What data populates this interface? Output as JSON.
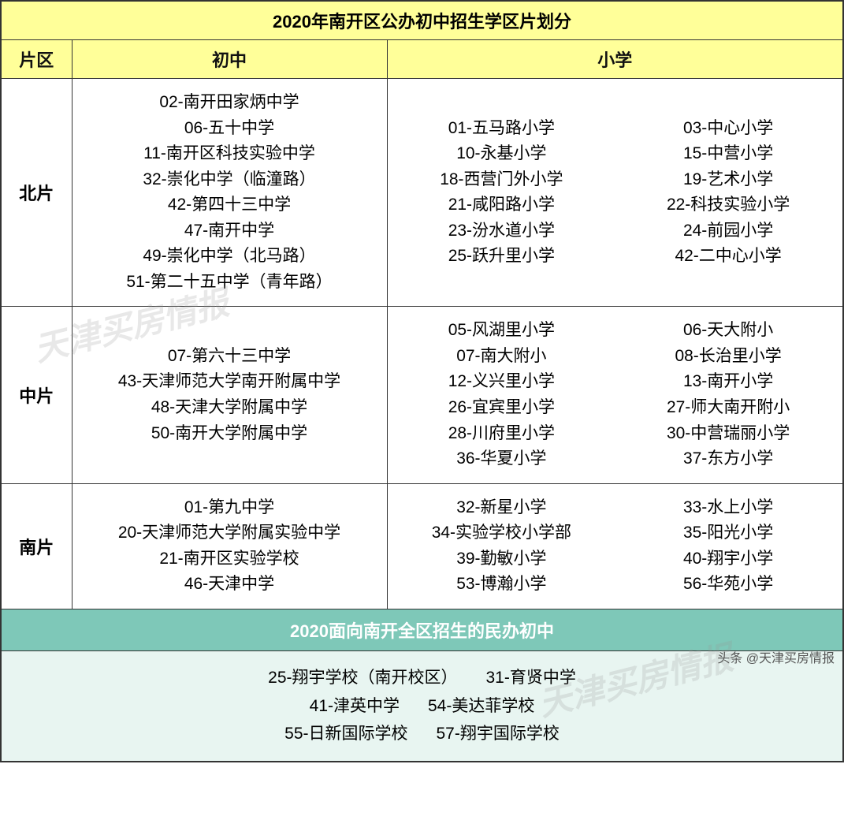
{
  "title": "2020年南开区公办初中招生学区片划分",
  "headers": {
    "zone": "片区",
    "middle": "初中",
    "primary": "小学"
  },
  "zones": [
    {
      "name": "北片",
      "middle": [
        "02-南开田家炳中学",
        "06-五十中学",
        "11-南开区科技实验中学",
        "32-崇化中学（临潼路）",
        "42-第四十三中学",
        "47-南开中学",
        "49-崇化中学（北马路）",
        "51-第二十五中学（青年路）"
      ],
      "primary_left": [
        "01-五马路小学",
        "10-永基小学",
        "18-西营门外小学",
        "21-咸阳路小学",
        "23-汾水道小学",
        "25-跃升里小学"
      ],
      "primary_right": [
        "03-中心小学",
        "15-中营小学",
        "19-艺术小学",
        "22-科技实验小学",
        "24-前园小学",
        "42-二中心小学"
      ]
    },
    {
      "name": "中片",
      "middle": [
        "07-第六十三中学",
        "43-天津师范大学南开附属中学",
        "48-天津大学附属中学",
        "50-南开大学附属中学"
      ],
      "primary_left": [
        "05-风湖里小学",
        "07-南大附小",
        "12-义兴里小学",
        "26-宜宾里小学",
        "28-川府里小学",
        "36-华夏小学"
      ],
      "primary_right": [
        "06-天大附小",
        "08-长治里小学",
        "13-南开小学",
        "27-师大南开附小",
        "30-中营瑞丽小学",
        "37-东方小学"
      ]
    },
    {
      "name": "南片",
      "middle": [
        "01-第九中学",
        "20-天津师范大学附属实验中学",
        "21-南开区实验学校",
        "46-天津中学"
      ],
      "primary_left": [
        "32-新星小学",
        "34-实验学校小学部",
        "39-勤敏小学",
        "53-博瀚小学"
      ],
      "primary_right": [
        "33-水上小学",
        "35-阳光小学",
        "40-翔宇小学",
        "56-华苑小学"
      ]
    }
  ],
  "private_title": "2020面向南开全区招生的民办初中",
  "private_rows": [
    [
      "25-翔宇学校（南开校区）",
      "31-育贤中学"
    ],
    [
      "41-津英中学",
      "54-美达菲学校"
    ],
    [
      "55-日新国际学校",
      "57-翔宇国际学校"
    ]
  ],
  "watermark_text": "天津买房情报",
  "credit": "头条 @天津买房情报",
  "colors": {
    "title_bg": "#ffff99",
    "section_bg": "#7ec8b8",
    "section_text": "#ffffff",
    "private_bg": "#e8f5f1",
    "border": "#333333"
  }
}
